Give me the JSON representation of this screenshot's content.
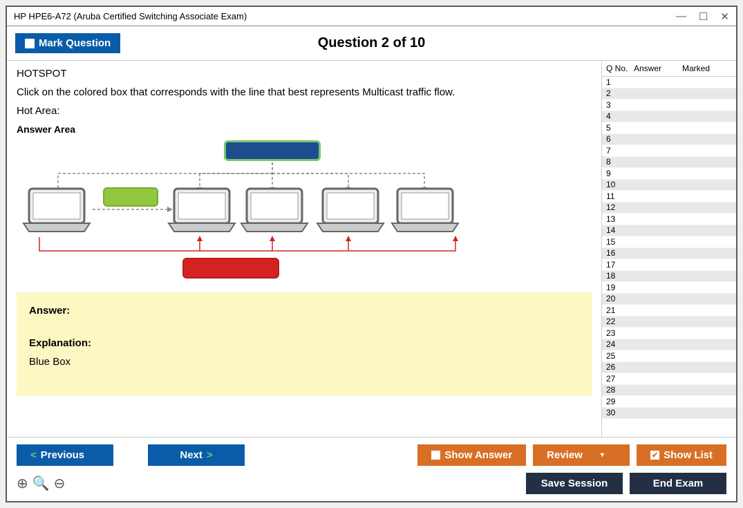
{
  "window": {
    "title": "HP HPE6-A72 (Aruba Certified Switching Associate Exam)"
  },
  "header": {
    "mark_label": "Mark Question",
    "counter": "Question 2 of 10"
  },
  "question": {
    "type_label": "HOTSPOT",
    "prompt": "Click on the colored box that corresponds with the line that best represents Multicast traffic flow.",
    "hot_area_label": "Hot Area:",
    "answer_area_label": "Answer Area"
  },
  "diagram": {
    "boxes": {
      "blue": {
        "color": "#1f4b8f",
        "outline": "#6fc96f"
      },
      "green": {
        "color": "#92c83e",
        "outline": "#7aa932"
      },
      "red": {
        "color": "#d42222",
        "outline": "#b81c1c"
      }
    },
    "laptop_count": 5
  },
  "answer_panel": {
    "answer_label": "Answer:",
    "explanation_label": "Explanation:",
    "explanation_text": "Blue Box"
  },
  "nav": {
    "columns": {
      "qno": "Q No.",
      "answer": "Answer",
      "marked": "Marked"
    },
    "row_count": 30,
    "current": 2
  },
  "footer": {
    "previous": "Previous",
    "next": "Next",
    "show_answer": "Show Answer",
    "review": "Review",
    "show_list": "Show List",
    "save_session": "Save Session",
    "end_exam": "End Exam"
  },
  "colors": {
    "brand_blue": "#0a5ca8",
    "brand_orange": "#d86f25",
    "brand_dark": "#233044",
    "answer_bg": "#fdf7c4"
  }
}
